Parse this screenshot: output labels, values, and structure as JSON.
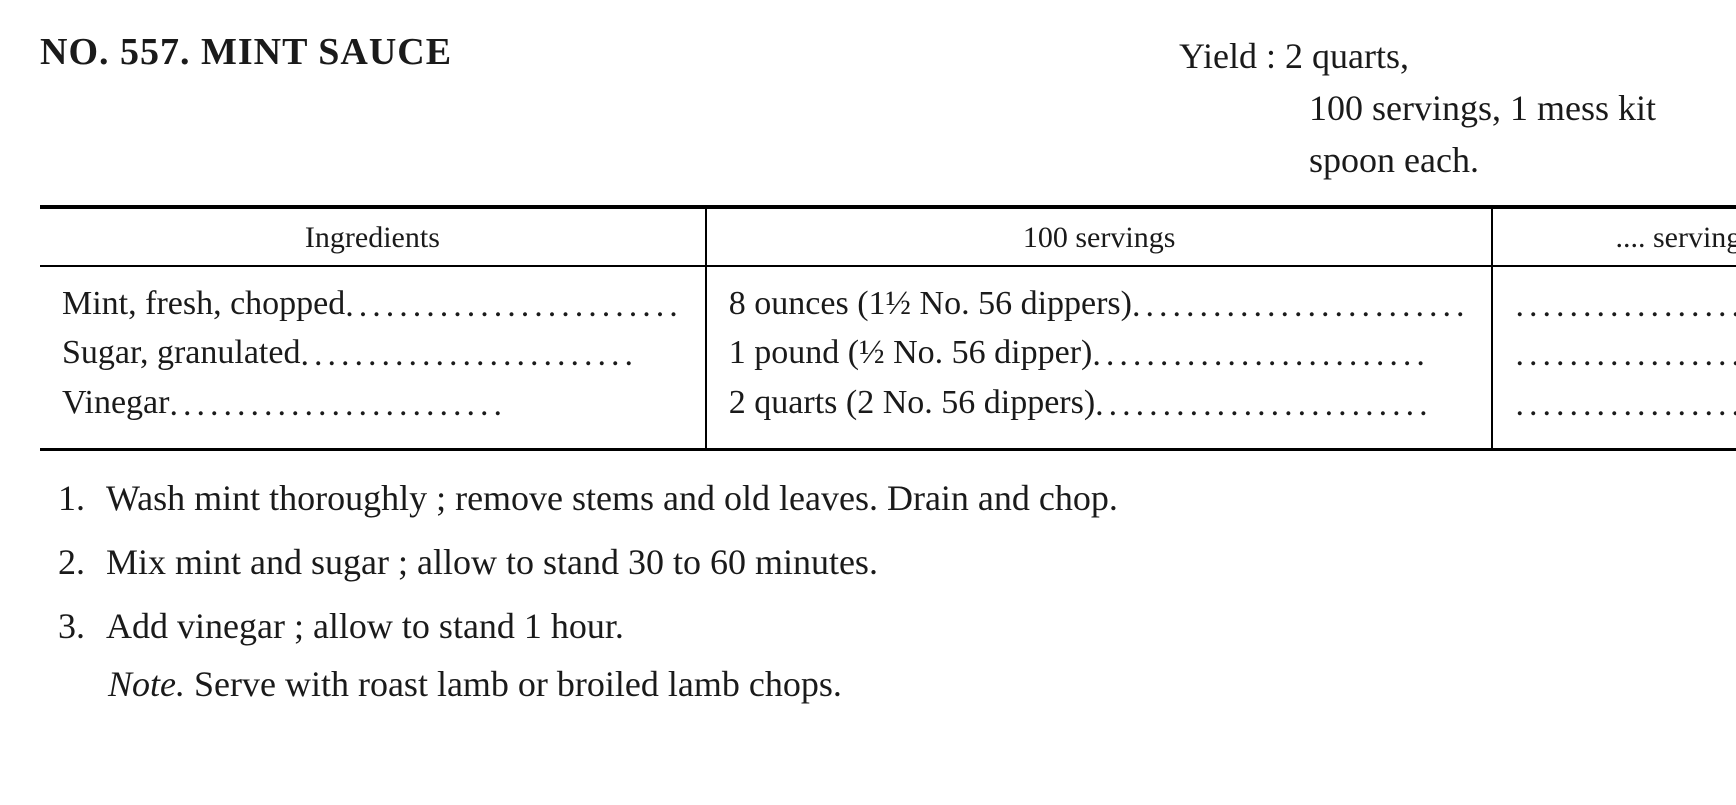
{
  "header": {
    "title": "NO. 557. MINT SAUCE",
    "yield_label": "Yield :",
    "yield_line1_rest": " 2 quarts,",
    "yield_line2": "100 servings, 1 mess kit",
    "yield_line3": "spoon each."
  },
  "table": {
    "columns": {
      "ingredients": "Ingredients",
      "servings100": "100 servings",
      "servingsBlank": ".... servings"
    },
    "rows": [
      {
        "ingredient": "Mint, fresh, chopped",
        "amount100": "8 ounces (1½ No. 56 dippers)"
      },
      {
        "ingredient": "Sugar, granulated",
        "amount100": "1 pound (½ No. 56 dipper)"
      },
      {
        "ingredient": "Vinegar",
        "amount100": "2 quarts (2 No. 56 dippers)"
      }
    ]
  },
  "steps": [
    "Wash mint thoroughly ; remove stems and old leaves. Drain and chop.",
    "Mix mint and sugar ; allow to stand 30 to 60 minutes.",
    "Add vinegar ; allow to stand 1 hour."
  ],
  "note": {
    "label": "Note.",
    "text": " Serve with roast lamb or broiled lamb chops."
  },
  "style": {
    "text_color": "#1a1a1a",
    "background_color": "#ffffff",
    "rule_color": "#000000",
    "body_fontsize": 36,
    "title_fontsize": 38,
    "table_fontsize": 34,
    "dot_letter_spacing": 5
  }
}
